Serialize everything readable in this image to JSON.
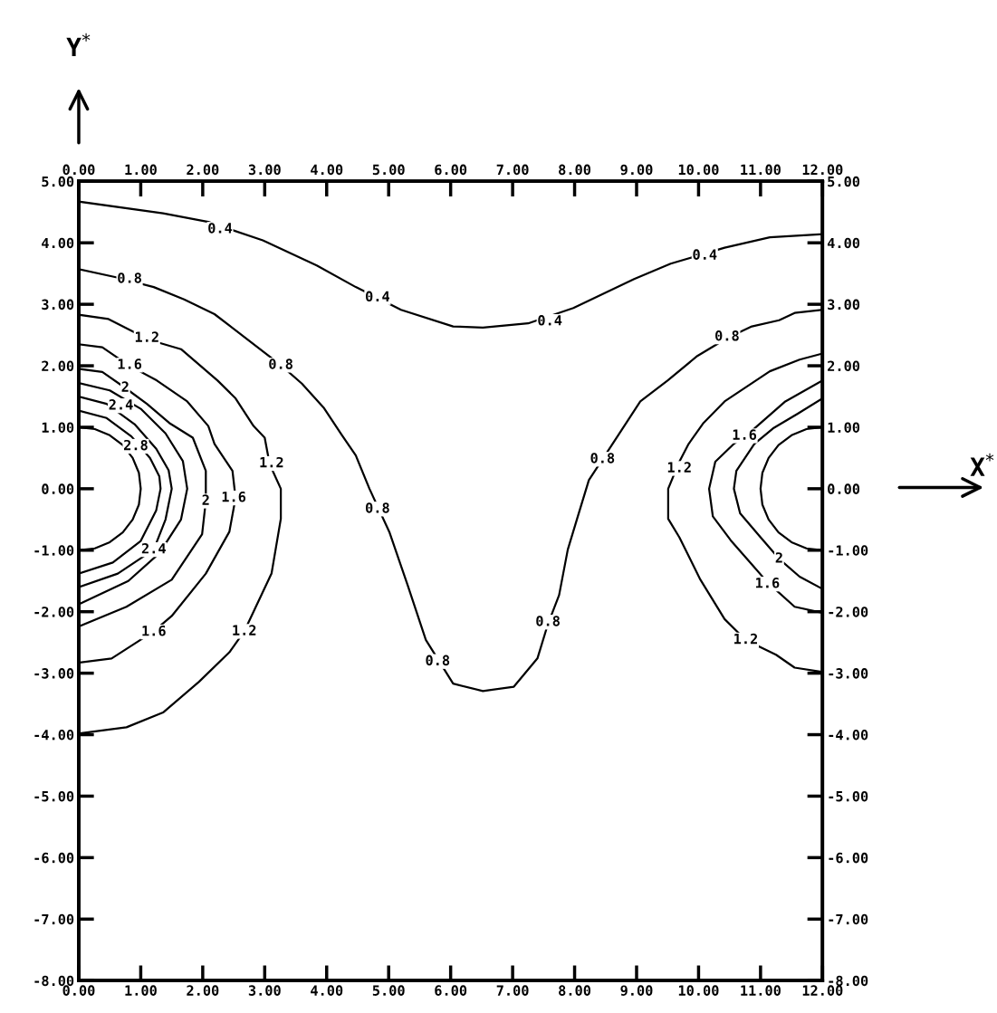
{
  "chart_data": {
    "type": "line",
    "xlabel": "X$^{*}$",
    "ylabel": "Y$^{*}$",
    "xlim": [
      0,
      12
    ],
    "ylim": [
      -8,
      5
    ],
    "x2lim": [
      0,
      12
    ],
    "y2lim": [
      -8,
      5
    ],
    "xticks": [
      {
        "value": 0,
        "label": "0.00"
      },
      {
        "value": 1,
        "label": "1.00"
      },
      {
        "value": 2,
        "label": "2.00"
      },
      {
        "value": 3,
        "label": "3.00"
      },
      {
        "value": 4,
        "label": "4.00"
      },
      {
        "value": 5,
        "label": "5.00"
      },
      {
        "value": 6,
        "label": "6.00"
      },
      {
        "value": 7,
        "label": "7.00"
      },
      {
        "value": 8,
        "label": "8.00"
      },
      {
        "value": 9,
        "label": "9.00"
      },
      {
        "value": 10,
        "label": "10.00"
      },
      {
        "value": 11,
        "label": "11.00"
      },
      {
        "value": 12,
        "label": "12.00"
      }
    ],
    "x2ticks": [
      {
        "value": 0,
        "label": "0.00"
      },
      {
        "value": 1,
        "label": "1.00"
      },
      {
        "value": 2,
        "label": "2.00"
      },
      {
        "value": 3,
        "label": "3.00"
      },
      {
        "value": 4,
        "label": "4.00"
      },
      {
        "value": 5,
        "label": "5.00"
      },
      {
        "value": 6,
        "label": "6.00"
      },
      {
        "value": 7,
        "label": "7.00"
      },
      {
        "value": 8,
        "label": "8.00"
      },
      {
        "value": 9,
        "label": "9.00"
      },
      {
        "value": 10,
        "label": "10.00"
      },
      {
        "value": 11,
        "label": "11.00"
      },
      {
        "value": 12,
        "label": "12.00"
      }
    ],
    "yticks": [
      {
        "value": 5,
        "label": "5.00"
      },
      {
        "value": 4,
        "label": "4.00"
      },
      {
        "value": 3,
        "label": "3.00"
      },
      {
        "value": 2,
        "label": "2.00"
      },
      {
        "value": 1,
        "label": "1.00"
      },
      {
        "value": 0,
        "label": "0.00"
      },
      {
        "value": -1,
        "label": "-1.00"
      },
      {
        "value": -2,
        "label": "-2.00"
      },
      {
        "value": -3,
        "label": "-3.00"
      },
      {
        "value": -4,
        "label": "-4.00"
      },
      {
        "value": -5,
        "label": "-5.00"
      },
      {
        "value": -6,
        "label": "-6.00"
      },
      {
        "value": -7,
        "label": "-7.00"
      },
      {
        "value": -8,
        "label": "-8.00"
      }
    ],
    "y2ticks": [
      {
        "value": 5,
        "label": "5.00"
      },
      {
        "value": 4,
        "label": "4.00"
      },
      {
        "value": 3,
        "label": "3.00"
      },
      {
        "value": 2,
        "label": "2.00"
      },
      {
        "value": 1,
        "label": "1.00"
      },
      {
        "value": 0,
        "label": "0.00"
      },
      {
        "value": -1,
        "label": "-1.00"
      },
      {
        "value": -2,
        "label": "-2.00"
      },
      {
        "value": -3,
        "label": "-3.00"
      },
      {
        "value": -4,
        "label": "-4.00"
      },
      {
        "value": -5,
        "label": "-5.00"
      },
      {
        "value": -6,
        "label": "-6.00"
      },
      {
        "value": -7,
        "label": "-7.00"
      },
      {
        "value": -8,
        "label": "-8.00"
      }
    ],
    "series": [
      {
        "color": "#000000",
        "x": [
          0,
          1.36,
          2.09,
          2.97,
          3.84,
          4.47,
          5.2,
          6.04,
          6.52,
          7.25,
          7.98,
          8.96,
          9.55,
          10.42,
          11.15,
          12
        ],
        "values": [
          4.67,
          4.48,
          4.34,
          4.04,
          3.63,
          3.28,
          2.91,
          2.64,
          2.62,
          2.69,
          2.94,
          3.41,
          3.66,
          3.92,
          4.09,
          4.14
        ]
      },
      {
        "color": "#000000",
        "x": [
          0,
          0.6,
          1.21,
          1.7,
          2.19,
          2.63,
          3.26,
          3.6,
          3.95,
          4.24,
          4.47,
          4.69,
          5.01,
          5.31,
          5.6,
          6.04,
          6.52,
          7.02,
          7.4,
          7.57,
          7.75,
          7.89,
          8.04,
          8.23,
          8.71,
          9.06,
          9.5,
          9.98,
          10.46,
          10.86,
          11.3,
          11.55,
          12
        ],
        "values": [
          3.57,
          3.44,
          3.28,
          3.08,
          2.84,
          2.5,
          2.01,
          1.71,
          1.32,
          0.88,
          0.54,
          0,
          -0.7,
          -1.58,
          -2.46,
          -3.17,
          -3.29,
          -3.22,
          -2.76,
          -2.2,
          -1.73,
          -0.99,
          -0.49,
          0.14,
          0.88,
          1.42,
          1.76,
          2.16,
          2.45,
          2.64,
          2.74,
          2.86,
          2.91
        ]
      },
      {
        "color": "#000000",
        "x": [
          0,
          0.48,
          1.14,
          1.65,
          2.24,
          2.53,
          2.82,
          3.0,
          3.08,
          3.26,
          3.26,
          3.11,
          2.67,
          2.43,
          1.94,
          1.36,
          0.77,
          0
        ],
        "values": [
          2.83,
          2.76,
          2.42,
          2.27,
          1.76,
          1.47,
          1.02,
          0.83,
          0.4,
          0,
          -0.49,
          -1.38,
          -2.32,
          -2.66,
          -3.14,
          -3.64,
          -3.88,
          -3.98
        ]
      },
      {
        "color": "#000000",
        "x": [
          0,
          0.38,
          0.8,
          1.26,
          1.75,
          2.09,
          2.19,
          2.48,
          2.53,
          2.43,
          2.05,
          1.5,
          1.21,
          0.53,
          0
        ],
        "values": [
          2.35,
          2.3,
          2.01,
          1.76,
          1.42,
          1.02,
          0.73,
          0.29,
          -0.15,
          -0.7,
          -1.38,
          -2.07,
          -2.32,
          -2.76,
          -2.83
        ]
      },
      {
        "color": "#000000",
        "x": [
          0,
          0.38,
          0.75,
          1.1,
          1.46,
          1.84,
          2.05,
          2.05,
          1.99,
          1.5,
          0.77,
          0
        ],
        "values": [
          1.95,
          1.9,
          1.64,
          1.38,
          1.07,
          0.83,
          0.29,
          -0.2,
          -0.74,
          -1.48,
          -1.92,
          -2.24
        ]
      },
      {
        "color": "#000000",
        "x": [
          0,
          0.5,
          1.0,
          1.4,
          1.68,
          1.75,
          1.65,
          1.3,
          0.8,
          0
        ],
        "values": [
          1.72,
          1.6,
          1.3,
          0.9,
          0.45,
          0,
          -0.5,
          -1.05,
          -1.5,
          -1.88
        ]
      },
      {
        "color": "#000000",
        "x": [
          0,
          0.45,
          0.9,
          1.25,
          1.45,
          1.5,
          1.4,
          1.21,
          0.63,
          0
        ],
        "values": [
          1.5,
          1.38,
          1.05,
          0.65,
          0.3,
          0,
          -0.5,
          -0.99,
          -1.38,
          -1.6
        ]
      },
      {
        "color": "#000000",
        "x": [
          0,
          0.45,
          0.85,
          1.15,
          1.3,
          1.32,
          1.25,
          1.0,
          0.55,
          0
        ],
        "values": [
          1.27,
          1.15,
          0.85,
          0.5,
          0.2,
          0,
          -0.35,
          -0.85,
          -1.2,
          -1.38
        ]
      },
      {
        "color": "#000000",
        "x": [
          12,
          11.63,
          11.15,
          10.42,
          10.08,
          9.84,
          9.69,
          9.51,
          9.51,
          9.69,
          10.03,
          10.42,
          10.76,
          11.25,
          11.55,
          12
        ],
        "values": [
          2.2,
          2.1,
          1.91,
          1.42,
          1.07,
          0.73,
          0.44,
          0,
          -0.49,
          -0.79,
          -1.48,
          -2.12,
          -2.46,
          -2.7,
          -2.91,
          -2.98
        ]
      },
      {
        "color": "#000000",
        "x": [
          12,
          11.4,
          10.9,
          10.57,
          10.27,
          10.17,
          10.23,
          10.52,
          10.86,
          11.11,
          11.55,
          12
        ],
        "values": [
          1.76,
          1.42,
          0.98,
          0.73,
          0.44,
          0,
          -0.45,
          -0.84,
          -1.23,
          -1.52,
          -1.92,
          -2.02
        ]
      },
      {
        "color": "#000000",
        "x": [
          12,
          11.6,
          11.2,
          10.9,
          10.61,
          10.57,
          10.67,
          11.0,
          11.3,
          11.63,
          12
        ],
        "values": [
          1.47,
          1.22,
          0.98,
          0.73,
          0.29,
          0,
          -0.4,
          -0.79,
          -1.14,
          -1.43,
          -1.63
        ]
      },
      {
        "color": "#000000",
        "x": [
          0,
          0.26,
          0.5,
          0.71,
          0.87,
          0.97,
          1,
          0.97,
          0.87,
          0.71,
          0.5,
          0.26,
          0
        ],
        "values": [
          1,
          0.97,
          0.87,
          0.71,
          0.5,
          0.26,
          0,
          -0.26,
          -0.5,
          -0.71,
          -0.87,
          -0.97,
          -1
        ]
      },
      {
        "color": "#000000",
        "x": [
          12,
          11.74,
          11.5,
          11.29,
          11.13,
          11.03,
          11,
          11.03,
          11.13,
          11.29,
          11.5,
          11.74,
          12
        ],
        "values": [
          1,
          0.97,
          0.87,
          0.71,
          0.5,
          0.26,
          0,
          -0.26,
          -0.5,
          -0.71,
          -0.87,
          -0.97,
          -1
        ]
      }
    ],
    "annotations": [
      {
        "text": "0.4",
        "x": 2.28,
        "y": 4.22
      },
      {
        "text": "0.4",
        "x": 4.82,
        "y": 3.11
      },
      {
        "text": "0.4",
        "x": 7.6,
        "y": 2.72
      },
      {
        "text": "0.4",
        "x": 10.1,
        "y": 3.79
      },
      {
        "text": "0.8",
        "x": 0.82,
        "y": 3.41
      },
      {
        "text": "0.8",
        "x": 3.26,
        "y": 2.01
      },
      {
        "text": "0.8",
        "x": 4.82,
        "y": -0.33
      },
      {
        "text": "0.8",
        "x": 5.79,
        "y": -2.81
      },
      {
        "text": "0.8",
        "x": 7.57,
        "y": -2.17
      },
      {
        "text": "0.8",
        "x": 8.45,
        "y": 0.48
      },
      {
        "text": "0.8",
        "x": 10.46,
        "y": 2.47
      },
      {
        "text": "1.2",
        "x": 1.1,
        "y": 2.45
      },
      {
        "text": "1.2",
        "x": 3.11,
        "y": 0.41
      },
      {
        "text": "1.2",
        "x": 2.67,
        "y": -2.32
      },
      {
        "text": "1.2",
        "x": 9.69,
        "y": 0.33
      },
      {
        "text": "1.2",
        "x": 10.76,
        "y": -2.46
      },
      {
        "text": "1.6",
        "x": 0.82,
        "y": 2.01
      },
      {
        "text": "1.6",
        "x": 2.5,
        "y": -0.15
      },
      {
        "text": "1.6",
        "x": 1.21,
        "y": -2.33
      },
      {
        "text": "1.6",
        "x": 10.74,
        "y": 0.86
      },
      {
        "text": "1.6",
        "x": 11.11,
        "y": -1.55
      },
      {
        "text": "2",
        "x": 0.75,
        "y": 1.64
      },
      {
        "text": "2",
        "x": 2.05,
        "y": -0.2
      },
      {
        "text": "2",
        "x": 11.3,
        "y": -1.14
      },
      {
        "text": "2.4",
        "x": 0.68,
        "y": 1.35
      },
      {
        "text": "2.4",
        "x": 1.21,
        "y": -0.99
      },
      {
        "text": "2.8",
        "x": 0.92,
        "y": 0.69
      }
    ]
  }
}
